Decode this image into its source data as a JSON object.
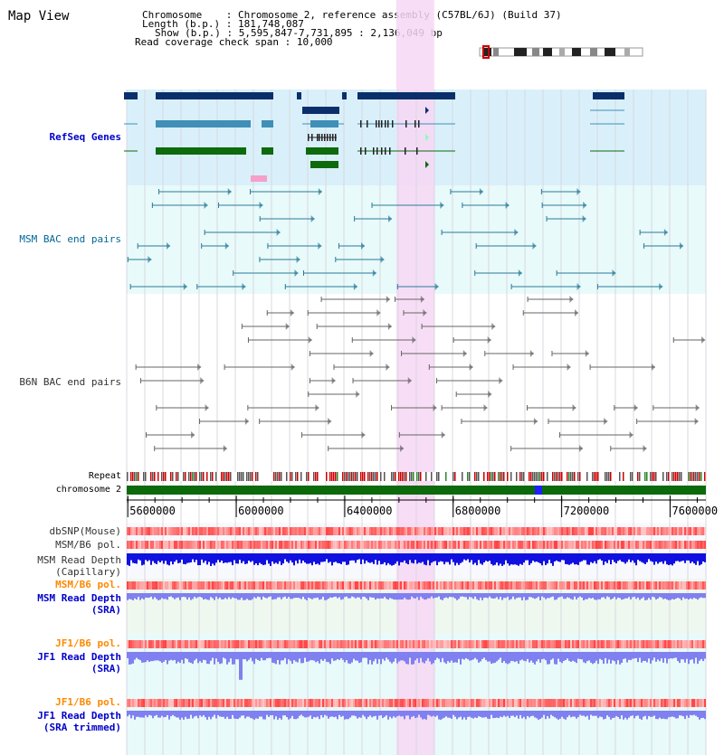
{
  "title": "Map View",
  "info": {
    "chromosome_label": "Chromosome    ",
    "chromosome_value": ": Chromosome 2, reference assembly (C57BL/6J) (Build 37)",
    "length_label": "Length (b.p.)",
    "length_value": ": 181,748,087",
    "show_label": "Show (b.p.)",
    "show_value": ": 5,595,847-7,731,895 : 2,136,049 bp",
    "span_label": "Read coverage check span",
    "span_value": ": 10,000"
  },
  "tracks": {
    "refseq": "RefSeq Genes",
    "msm_bac": "MSM BAC end pairs",
    "b6n_bac": "B6N BAC end pairs",
    "repeat": "Repeat",
    "chromosome": "chromosome 2",
    "dbsnp": "dbSNP(Mouse)",
    "msm_b6_pol": "MSM/B6 pol.",
    "msm_depth_cap_1": "MSM Read Depth",
    "msm_depth_cap_2": "(Capillary)",
    "msm_b6_pol_2": "MSM/B6 pol.",
    "msm_depth_sra_1": "MSM Read Depth",
    "msm_depth_sra_2": "(SRA)",
    "jf1_b6_pol": "JF1/B6 pol.",
    "jf1_depth_sra_1": "JF1 Read Depth",
    "jf1_depth_sra_2": "(SRA)",
    "jf1_b6_pol_2": "JF1/B6 pol.",
    "jf1_depth_trim_1": "JF1 Read Depth",
    "jf1_depth_trim_2": "(SRA trimmed)"
  },
  "axis": {
    "ticks": [
      "5600000",
      "6000000",
      "6400000",
      "6800000",
      "7200000",
      "7600000"
    ],
    "start": 5595847,
    "end": 7731895
  },
  "highlight_range": [
    6590000,
    6730000
  ],
  "colors": {
    "highlight": "#f7d7f4",
    "refseq_bg": "#d9f0fa",
    "refseq_label": "#0000cc",
    "msm_label": "#006699",
    "b6n_label": "#555555",
    "gene_dark": "#0b2f6b",
    "gene_mid": "#3f8fb6",
    "gene_green": "#0d6a0d",
    "snp_red": "#f05050",
    "depth_blue": "#1010e0",
    "depth_light": "#8080f0",
    "orange_label": "#ff8800",
    "blue_label": "#0000cc",
    "chrom_green": "#0c6a0c"
  }
}
